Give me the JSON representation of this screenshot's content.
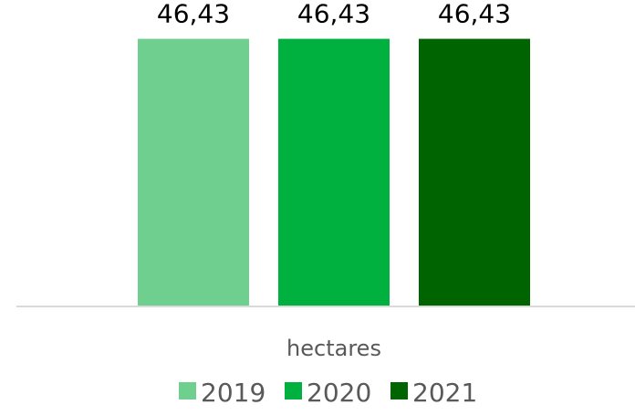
{
  "chart_data": {
    "type": "bar",
    "categories": [
      "hectares"
    ],
    "series": [
      {
        "name": "2019",
        "values": [
          46.43
        ],
        "color": "#6ecf8f",
        "label": "46,43"
      },
      {
        "name": "2020",
        "values": [
          46.43
        ],
        "color": "#00b140",
        "label": "46,43"
      },
      {
        "name": "2021",
        "values": [
          46.43
        ],
        "color": "#006400",
        "label": "46,43"
      }
    ],
    "xlabel": "",
    "ylabel": "",
    "ylim": [
      0,
      50
    ],
    "grid": false,
    "legend_position": "bottom",
    "axis_line_color": "#d9d9d9"
  }
}
